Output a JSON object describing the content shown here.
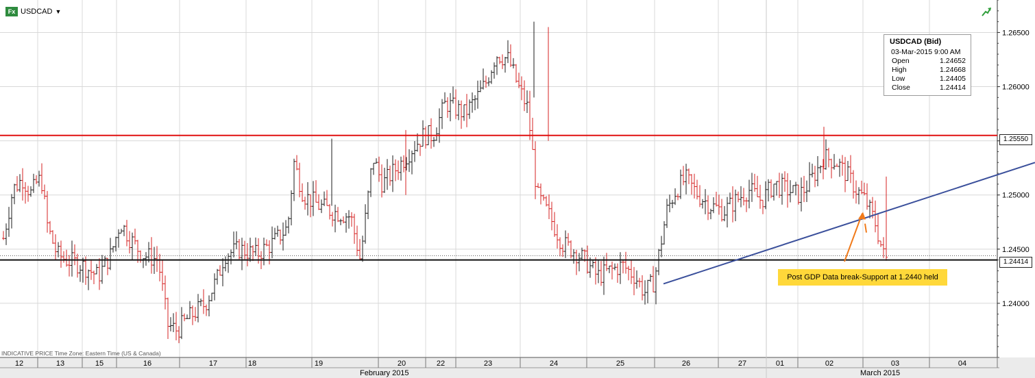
{
  "header": {
    "badge": "Fx",
    "symbol": "USDCAD",
    "caret": "▼"
  },
  "info_box": {
    "title": "USDCAD (Bid)",
    "timestamp": "03-Mar-2015 9:00 AM",
    "rows": [
      {
        "label": "Open",
        "value": "1.24652"
      },
      {
        "label": "High",
        "value": "1.24668"
      },
      {
        "label": "Low",
        "value": "1.24405"
      },
      {
        "label": "Close",
        "value": "1.24414"
      }
    ]
  },
  "annotation": {
    "text": "Post GDP Data break-Support at 1.2440 held"
  },
  "footer_note": "INDICATIVE PRICE   Time Zone: Eastern Time (US & Canada)",
  "colors": {
    "up": "#1a1a1a",
    "down": "#d42020",
    "resistance": "#e01010",
    "support": "#111111",
    "trendline": "#3a4f9b",
    "arrow": "#f07a1a",
    "grid": "#d8d8d8"
  },
  "chart_data": {
    "type": "candlestick-bars",
    "instrument": "USDCAD",
    "ylim": [
      1.235,
      1.268
    ],
    "yticks": [
      "1.24000",
      "1.24500",
      "1.25000",
      "1.25500",
      "1.26000",
      "1.26500"
    ],
    "x_days": [
      "12",
      "13",
      "15",
      "16",
      "17",
      "18",
      "19",
      "20",
      "22",
      "23",
      "24",
      "25",
      "26",
      "27",
      "01",
      "02",
      "03",
      "04"
    ],
    "x_months": [
      "February 2015",
      "March 2015"
    ],
    "reference_lines": [
      {
        "name": "resistance",
        "value": 1.2555,
        "label": "1.25550"
      },
      {
        "name": "support",
        "value": 1.244
      },
      {
        "name": "last",
        "value": 1.24414,
        "label": "1.24414",
        "dotted": true
      }
    ],
    "trendline": {
      "from": {
        "day": "26",
        "value": 1.2418
      },
      "to": {
        "day": "04",
        "value": 1.253
      }
    },
    "annotation_arrow": {
      "day": "02",
      "value": 1.2483
    },
    "highs_lows": {
      "high": 1.266,
      "low": 1.2365
    }
  }
}
